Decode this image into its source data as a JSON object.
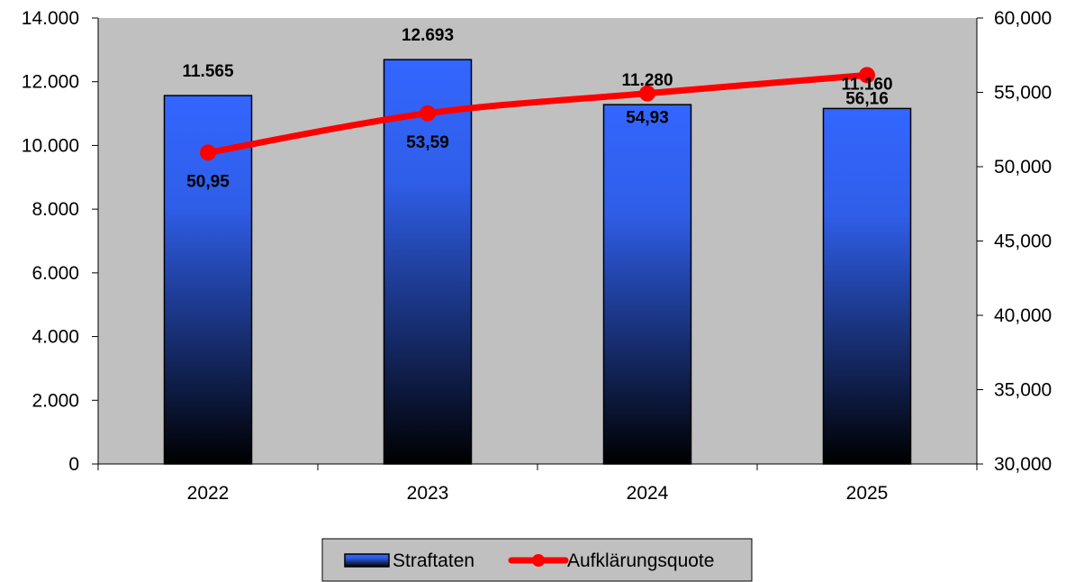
{
  "chart_data": {
    "type": "bar",
    "categories": [
      "2022",
      "2023",
      "2024",
      "2025"
    ],
    "series": [
      {
        "name": "Straftaten",
        "type": "bar",
        "axis": "left",
        "values": [
          11565,
          12693,
          11280,
          11160
        ],
        "labels": [
          "11.565",
          "12.693",
          "11.280",
          "11.160"
        ]
      },
      {
        "name": "Aufklärungsquote",
        "type": "line",
        "axis": "right",
        "values": [
          50.95,
          53.59,
          54.93,
          56.16
        ],
        "labels": [
          "50,95",
          "53,59",
          "54,93",
          "56,16"
        ]
      }
    ],
    "ylim_left": [
      0,
      14000
    ],
    "yticks_left": [
      "0",
      "2.000",
      "4.000",
      "6.000",
      "8.000",
      "10.000",
      "12.000",
      "14.000"
    ],
    "ylim_right": [
      30,
      60
    ],
    "yticks_right": [
      "30,000",
      "35,000",
      "40,000",
      "45,000",
      "50,000",
      "55,000",
      "60,000"
    ],
    "grid": false,
    "legend_position": "bottom",
    "colors": {
      "plot_background": "#c0c0c0",
      "bar_top": "#3366ff",
      "bar_bottom": "#000000",
      "line": "#ff0000"
    }
  }
}
